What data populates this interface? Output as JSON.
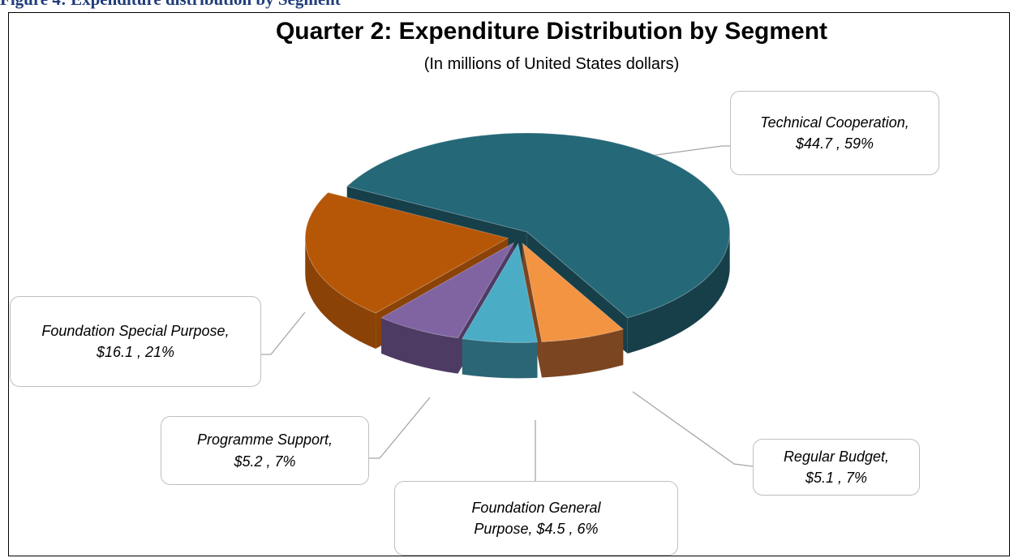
{
  "caption": "Figure 4: Expenditure distribution by Segment",
  "chart_data": {
    "type": "pie3d",
    "title": "Quarter 2: Expenditure Distribution by Segment",
    "subtitle": "(In millions of United States dollars)",
    "categories": [
      "Technical Cooperation",
      "Regular Budget",
      "Foundation General Purpose",
      "Programme Support",
      "Foundation Special Purpose"
    ],
    "values": [
      44.7,
      5.1,
      4.5,
      5.2,
      16.1
    ],
    "value_labels": [
      "$44.7",
      "$5.1",
      "$4.5",
      "$5.2",
      "$16.1"
    ],
    "percents": [
      59,
      7,
      6,
      7,
      21
    ],
    "percent_labels": [
      "59%",
      "7%",
      "6%",
      "7%",
      "21%"
    ],
    "colors": [
      "#256878",
      "#f39443",
      "#4bacc6",
      "#8064a2",
      "#b65708"
    ],
    "side_colors": [
      "#163f49",
      "#7a4520",
      "#2b6676",
      "#4d3b63",
      "#8a4206"
    ]
  }
}
